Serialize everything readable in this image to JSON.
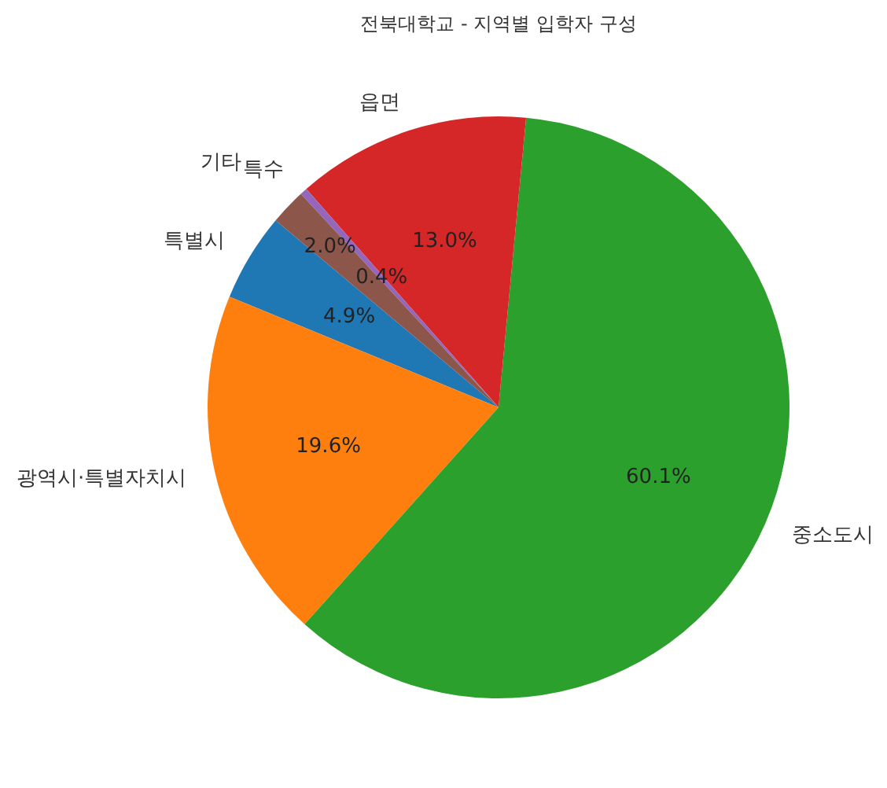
{
  "chart_data": {
    "type": "pie",
    "title": "전북대학교 - 지역별 입학자 구성",
    "categories": [
      "특별시",
      "광역시·특별자치시",
      "중소도시",
      "읍면",
      "특수",
      "기타"
    ],
    "values": [
      4.9,
      19.6,
      60.1,
      13.0,
      0.4,
      2.0
    ],
    "value_labels": [
      "4.9%",
      "19.6%",
      "60.1%",
      "13.0%",
      "0.4%",
      "2.0%"
    ],
    "colors": [
      "#1f77b4",
      "#ff7f0e",
      "#2ca02c",
      "#d62728",
      "#9467bd",
      "#8c564b"
    ]
  }
}
